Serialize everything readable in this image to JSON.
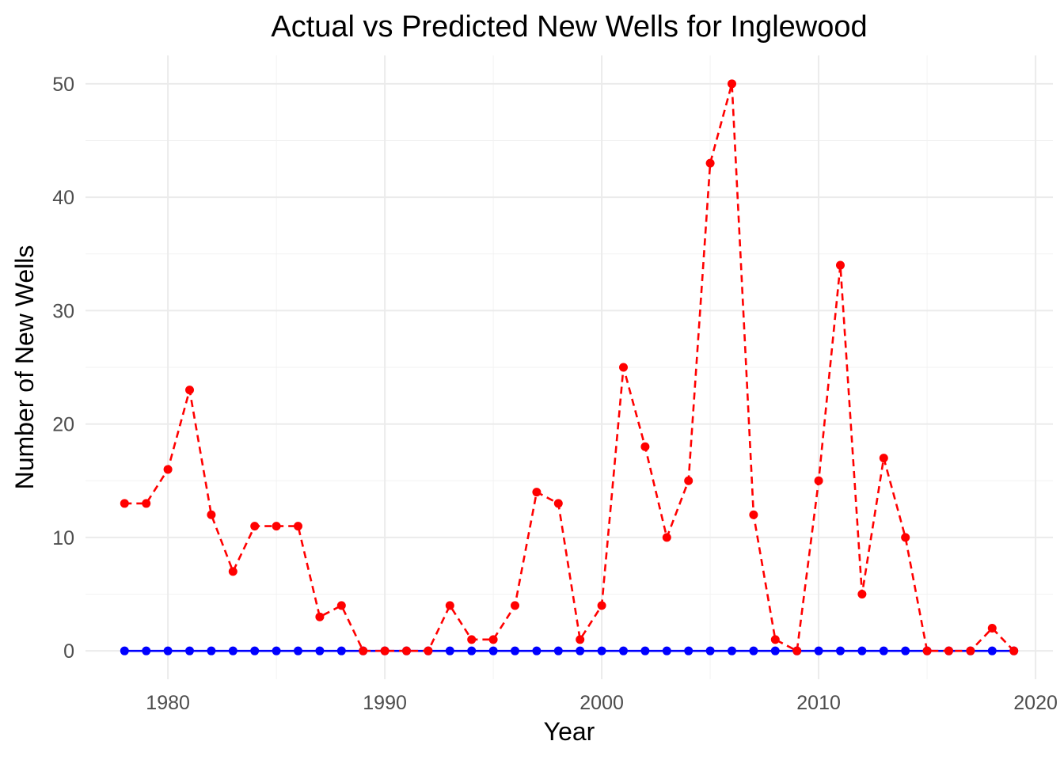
{
  "chart_data": {
    "type": "line",
    "title": "Actual vs Predicted New Wells for Inglewood",
    "xlabel": "Year",
    "ylabel": "Number of New Wells",
    "xlim": [
      1976.2,
      2020.8
    ],
    "ylim": [
      -2.5,
      52.5
    ],
    "xticks": [
      1980,
      1990,
      2000,
      2010,
      2020
    ],
    "yticks": [
      0,
      10,
      20,
      30,
      40,
      50
    ],
    "grid": true,
    "legend": "none",
    "x": [
      1978,
      1979,
      1980,
      1981,
      1982,
      1983,
      1984,
      1985,
      1986,
      1987,
      1988,
      1989,
      1990,
      1991,
      1992,
      1993,
      1994,
      1995,
      1996,
      1997,
      1998,
      1999,
      2000,
      2001,
      2002,
      2003,
      2004,
      2005,
      2006,
      2007,
      2008,
      2009,
      2010,
      2011,
      2012,
      2013,
      2014,
      2015,
      2016,
      2017,
      2018,
      2019
    ],
    "series": [
      {
        "color": "#0000ff",
        "line": "solid",
        "values": [
          0,
          0,
          0,
          0,
          0,
          0,
          0,
          0,
          0,
          0,
          0,
          0,
          0,
          0,
          0,
          0,
          0,
          0,
          0,
          0,
          0,
          0,
          0,
          0,
          0,
          0,
          0,
          0,
          0,
          0,
          0,
          0,
          0,
          0,
          0,
          0,
          0,
          0,
          0,
          0,
          0,
          0
        ]
      },
      {
        "color": "#ff0000",
        "line": "dashed",
        "values": [
          13,
          13,
          16,
          23,
          12,
          7,
          11,
          11,
          11,
          3,
          4,
          0,
          0,
          0,
          0,
          4,
          1,
          1,
          4,
          14,
          13,
          1,
          4,
          25,
          18,
          10,
          15,
          43,
          50,
          12,
          1,
          0,
          15,
          34,
          5,
          17,
          10,
          0,
          0,
          0,
          2,
          0
        ]
      }
    ]
  }
}
